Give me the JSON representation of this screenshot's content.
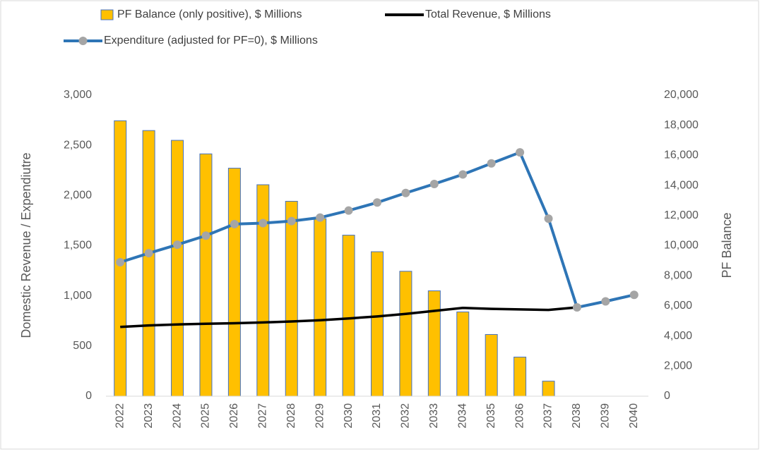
{
  "chart_data": {
    "type": "bar_line_combo",
    "y_label": "Domestic Revenue / Expendiutre",
    "y2_label": "PF Balance",
    "categories": [
      "2022",
      "2023",
      "2024",
      "2025",
      "2026",
      "2027",
      "2028",
      "2029",
      "2030",
      "2031",
      "2032",
      "2033",
      "2034",
      "2035",
      "2036",
      "2037",
      "2038",
      "2039",
      "2040"
    ],
    "series": [
      {
        "name": "PF Balance (only positive), $ Millions",
        "kind": "bar",
        "axis": "y2",
        "color": "#FFC000",
        "edge_color": "#4472C4",
        "values": [
          18300,
          17650,
          17000,
          16100,
          15150,
          14050,
          12950,
          11800,
          10700,
          9600,
          8300,
          7000,
          5600,
          4100,
          2600,
          1000,
          0,
          0,
          0
        ]
      },
      {
        "name": "Total Revenue, $ Millions",
        "kind": "line",
        "color": "#000000",
        "values": [
          690,
          705,
          715,
          722,
          727,
          735,
          745,
          757,
          775,
          795,
          820,
          850,
          880,
          870,
          865,
          860,
          885,
          945,
          1010
        ]
      },
      {
        "name": "Expenditure (adjusted for PF=0), $ Millions",
        "kind": "line",
        "color": "#2E75B6",
        "marker_color": "#A5A5A5",
        "values": [
          1335,
          1425,
          1510,
          1600,
          1715,
          1725,
          1745,
          1780,
          1850,
          1930,
          2025,
          2115,
          2210,
          2320,
          2430,
          1770,
          885,
          945,
          1010
        ]
      }
    ],
    "ylim": [
      0,
      3000
    ],
    "yticks": [
      0,
      500,
      {
        "value": 1000,
        "label": "1,000"
      },
      {
        "value": 1500,
        "label": "1,500"
      },
      {
        "value": 2000,
        "label": "2,000"
      },
      {
        "value": 2500,
        "label": "2,500"
      },
      {
        "value": 3000,
        "label": "3,000"
      }
    ],
    "y2lim": [
      0,
      20000
    ],
    "y2ticks": [
      0,
      {
        "value": 2000,
        "label": "2,000"
      },
      {
        "value": 4000,
        "label": "4,000"
      },
      {
        "value": 6000,
        "label": "6,000"
      },
      {
        "value": 8000,
        "label": "8,000"
      },
      {
        "value": 10000,
        "label": "10,000"
      },
      {
        "value": 12000,
        "label": "12,000"
      },
      {
        "value": 14000,
        "label": "14,000"
      },
      {
        "value": 16000,
        "label": "16,000"
      },
      {
        "value": 18000,
        "label": "18,000"
      },
      {
        "value": 20000,
        "label": "20,000"
      }
    ],
    "grid": false
  }
}
